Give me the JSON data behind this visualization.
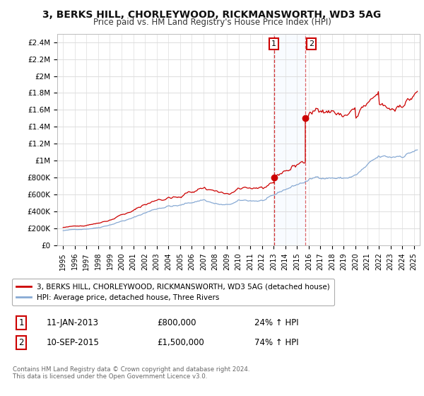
{
  "title": "3, BERKS HILL, CHORLEYWOOD, RICKMANSWORTH, WD3 5AG",
  "subtitle": "Price paid vs. HM Land Registry's House Price Index (HPI)",
  "ylabel_ticks": [
    "£0",
    "£200K",
    "£400K",
    "£600K",
    "£800K",
    "£1M",
    "£1.2M",
    "£1.4M",
    "£1.6M",
    "£1.8M",
    "£2M",
    "£2.2M",
    "£2.4M"
  ],
  "ytick_values": [
    0,
    200000,
    400000,
    600000,
    800000,
    1000000,
    1200000,
    1400000,
    1600000,
    1800000,
    2000000,
    2200000,
    2400000
  ],
  "ylim": [
    0,
    2500000
  ],
  "xlim_start": 1994.5,
  "xlim_end": 2025.5,
  "property_color": "#cc0000",
  "hpi_color": "#88aad4",
  "sale1_date": 2013.03,
  "sale1_price": 800000,
  "sale2_date": 2015.71,
  "sale2_price": 1500000,
  "legend_property": "3, BERKS HILL, CHORLEYWOOD, RICKMANSWORTH, WD3 5AG (detached house)",
  "legend_hpi": "HPI: Average price, detached house, Three Rivers",
  "annotation1_label": "1",
  "annotation1_date": "11-JAN-2013",
  "annotation1_price": "£800,000",
  "annotation1_hpi": "24% ↑ HPI",
  "annotation2_label": "2",
  "annotation2_date": "10-SEP-2015",
  "annotation2_price": "£1,500,000",
  "annotation2_hpi": "74% ↑ HPI",
  "footnote": "Contains HM Land Registry data © Crown copyright and database right 2024.\nThis data is licensed under the Open Government Licence v3.0.",
  "background_color": "#ffffff",
  "grid_color": "#dddddd",
  "shade_color": "#ddeeff"
}
